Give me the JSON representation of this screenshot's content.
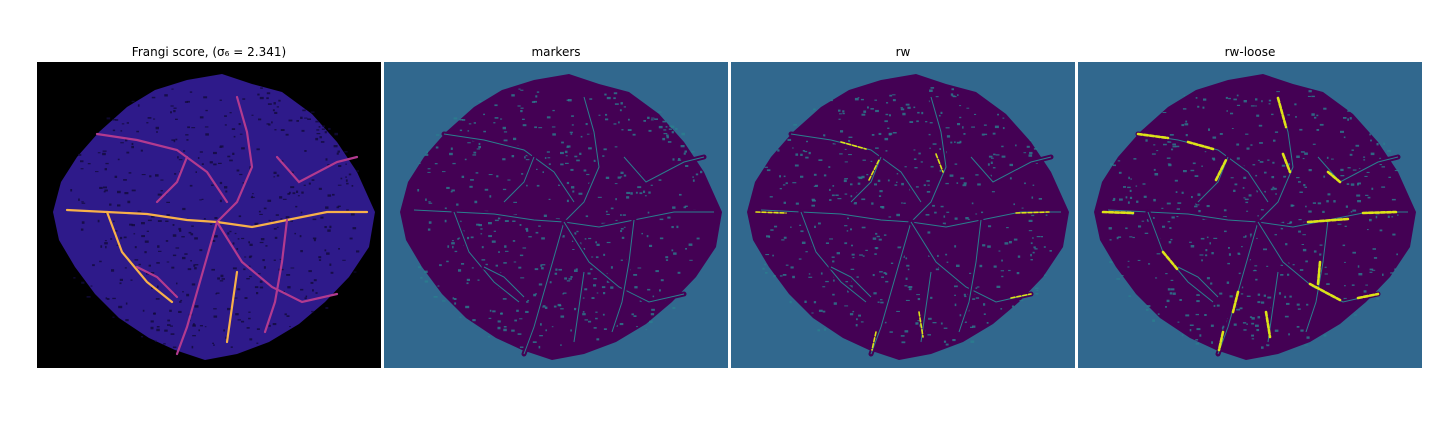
{
  "figure": {
    "panels": [
      {
        "title": "Frangi score, (σ₆ = 2.341)",
        "colormap": "magma",
        "background": "#000000",
        "tissue": "#2e1a8a",
        "vessel": "#f8b04a",
        "vessel_alt": "#b23a8f"
      },
      {
        "title": "markers",
        "colormap": "viridis",
        "background": "#31688e",
        "tissue": "#440154",
        "vessel": "#2a7f8e"
      },
      {
        "title": "rw",
        "colormap": "viridis",
        "background": "#31688e",
        "tissue": "#440154",
        "vessel": "#2a7f8e",
        "highlight": "#dde318"
      },
      {
        "title": "rw-loose",
        "colormap": "viridis",
        "background": "#31688e",
        "tissue": "#440154",
        "vessel": "#2a7f8e",
        "highlight": "#dde318"
      }
    ]
  }
}
